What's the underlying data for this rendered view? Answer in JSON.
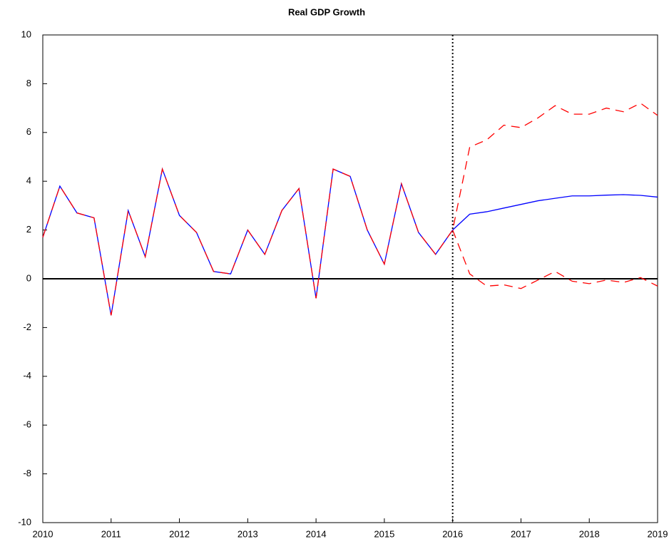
{
  "chart_data": {
    "type": "line",
    "title": "Real GDP Growth",
    "x": [
      2010,
      2010.25,
      2010.5,
      2010.75,
      2011,
      2011.25,
      2011.5,
      2011.75,
      2012,
      2012.25,
      2012.5,
      2012.75,
      2013,
      2013.25,
      2013.5,
      2013.75,
      2014,
      2014.25,
      2014.5,
      2014.75,
      2015,
      2015.25,
      2015.5,
      2015.75,
      2016,
      2016.25,
      2016.5,
      2016.75,
      2017,
      2017.25,
      2017.5,
      2017.75,
      2018,
      2018.25,
      2018.5,
      2018.75,
      2019
    ],
    "series": [
      {
        "color": "#0000ff",
        "dash": "solid",
        "values": [
          1.7,
          3.8,
          2.7,
          2.5,
          -1.5,
          2.8,
          0.9,
          4.5,
          2.6,
          1.9,
          0.3,
          0.2,
          2.0,
          1.0,
          2.8,
          3.7,
          -0.8,
          4.5,
          4.2,
          2.0,
          0.6,
          3.9,
          1.9,
          1.0,
          2.0,
          2.65,
          2.75,
          2.9,
          3.05,
          3.2,
          3.3,
          3.4,
          3.4,
          3.43,
          3.45,
          3.42,
          3.35
        ]
      },
      {
        "color": "#ff0000",
        "dash": "dashed",
        "values": [
          1.7,
          3.8,
          2.7,
          2.5,
          -1.5,
          2.8,
          0.9,
          4.5,
          2.6,
          1.9,
          0.3,
          0.2,
          2.0,
          1.0,
          2.8,
          3.7,
          -0.8,
          4.5,
          4.2,
          2.0,
          0.6,
          3.9,
          1.9,
          1.0,
          2.0,
          5.4,
          5.7,
          6.3,
          6.2,
          6.6,
          7.1,
          6.75,
          6.75,
          7.0,
          6.85,
          7.2,
          6.7
        ]
      },
      {
        "color": "#ff0000",
        "dash": "dashed",
        "values": [
          null,
          null,
          null,
          null,
          null,
          null,
          null,
          null,
          null,
          null,
          null,
          null,
          null,
          null,
          null,
          null,
          null,
          null,
          null,
          null,
          null,
          null,
          null,
          null,
          2.0,
          0.2,
          -0.3,
          -0.25,
          -0.4,
          -0.05,
          0.3,
          -0.1,
          -0.2,
          -0.05,
          -0.15,
          0.05,
          -0.3
        ]
      }
    ],
    "xlim": [
      2010,
      2019
    ],
    "xticks": [
      2010,
      2011,
      2012,
      2013,
      2014,
      2015,
      2016,
      2017,
      2018,
      2019
    ],
    "ylim": [
      -10,
      10
    ],
    "yticks": [
      -10,
      -8,
      -6,
      -4,
      -2,
      0,
      2,
      4,
      6,
      8,
      10
    ],
    "hline": 0,
    "vline": 2016,
    "grid": false
  }
}
